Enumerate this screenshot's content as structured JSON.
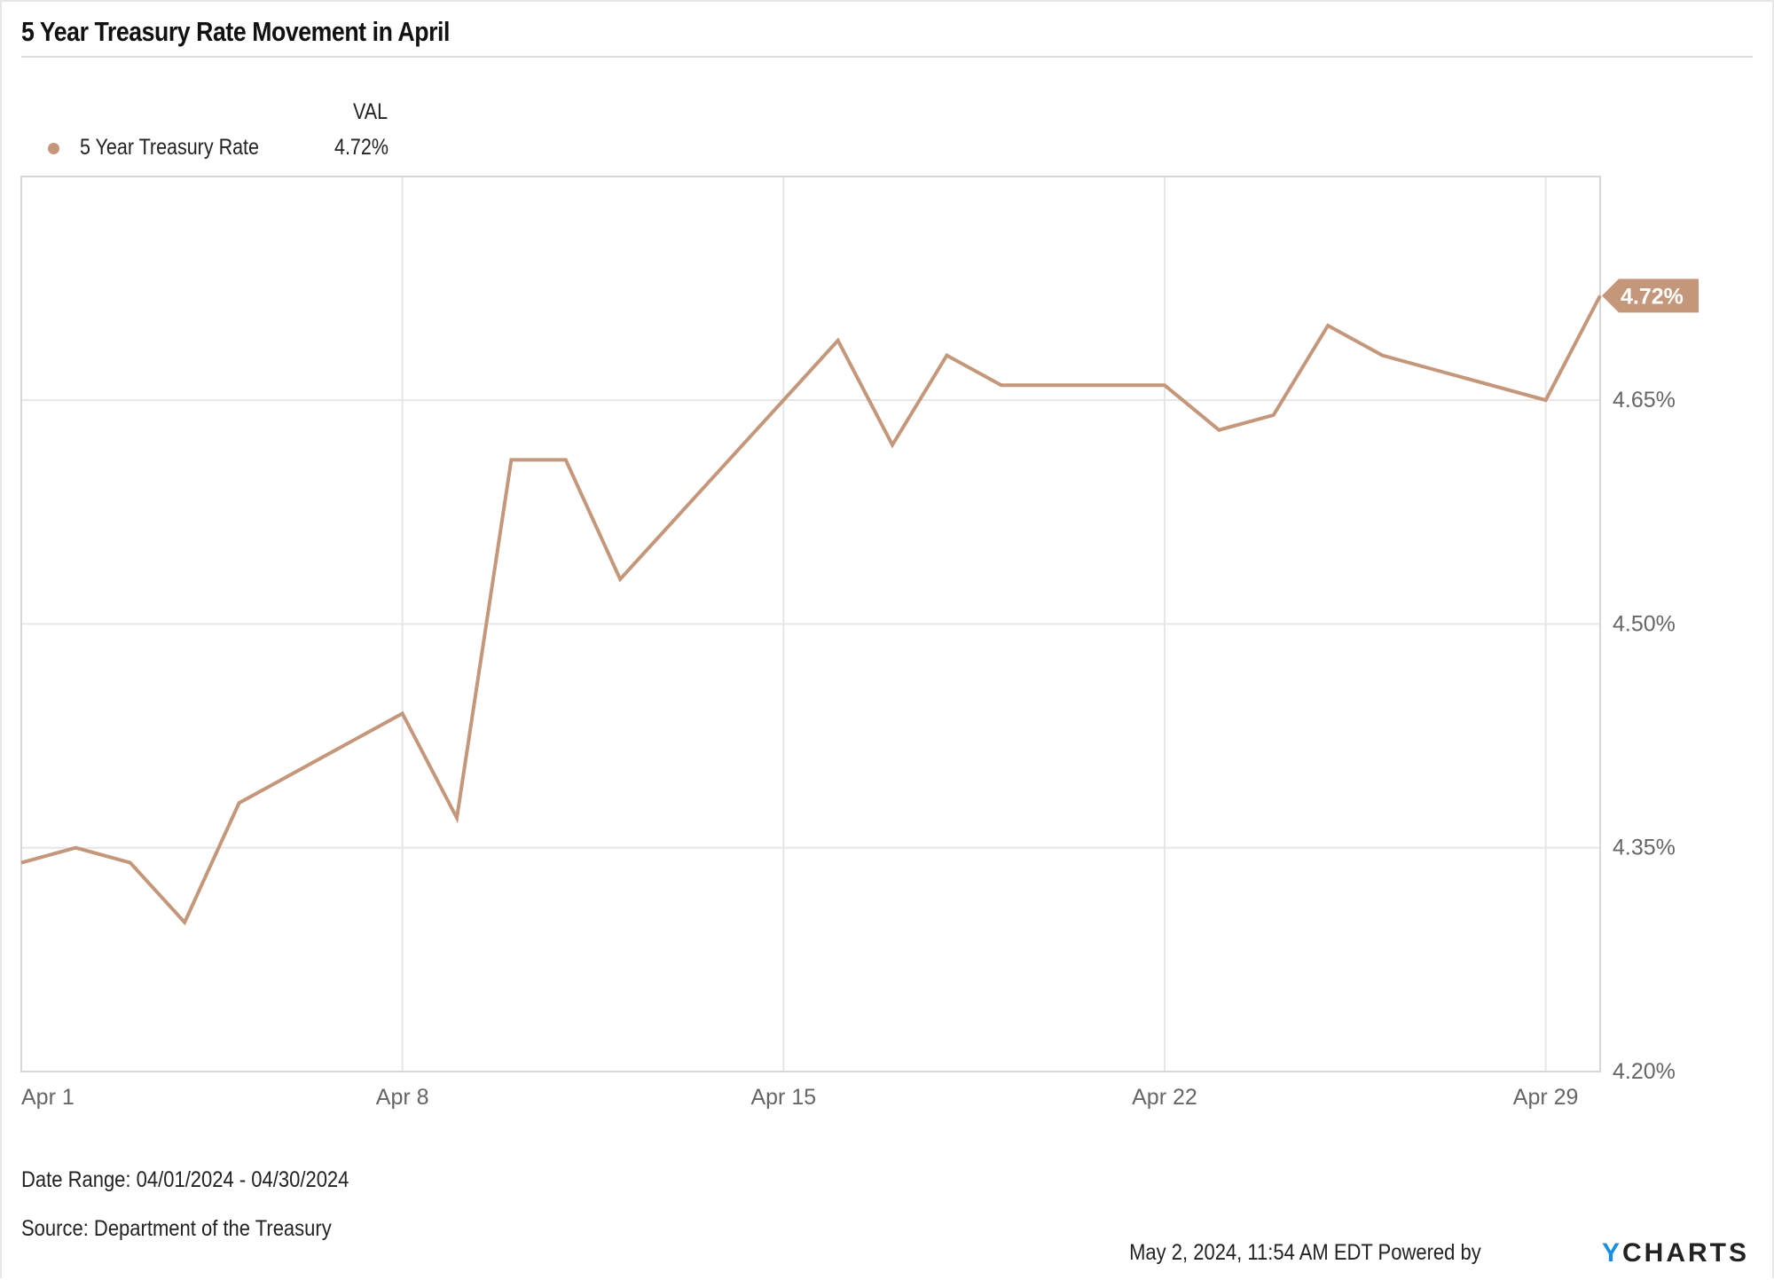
{
  "title": "5 Year Treasury Rate Movement in April",
  "legend": {
    "header": "VAL",
    "items": [
      {
        "name": "5 Year Treasury Rate",
        "value": "4.72%",
        "color": "#c4967a"
      }
    ]
  },
  "last_value_tag": "4.72%",
  "footer": {
    "date_range": "Date Range: 04/01/2024 - 04/30/2024",
    "source": "Source: Department of the Treasury",
    "timestamp": "May 2, 2024, 11:54 AM EDT Powered by",
    "brand_y": "Y",
    "brand_rest": "CHARTS"
  },
  "chart_data": {
    "type": "line",
    "title": "5 Year Treasury Rate Movement in April",
    "xlabel": "",
    "ylabel": "",
    "ylim": [
      4.2,
      4.8
    ],
    "yticks": [
      "4.20%",
      "4.35%",
      "4.50%",
      "4.65%"
    ],
    "xticks": [
      "Apr 1",
      "Apr 8",
      "Apr 15",
      "Apr 22",
      "Apr 29"
    ],
    "grid": true,
    "legend_position": "top-left",
    "series": [
      {
        "name": "5 Year Treasury Rate",
        "color": "#c4967a",
        "x": [
          "Apr 1",
          "Apr 2",
          "Apr 3",
          "Apr 4",
          "Apr 5",
          "Apr 8",
          "Apr 9",
          "Apr 10",
          "Apr 11",
          "Apr 12",
          "Apr 15",
          "Apr 16",
          "Apr 17",
          "Apr 18",
          "Apr 19",
          "Apr 22",
          "Apr 23",
          "Apr 24",
          "Apr 25",
          "Apr 26",
          "Apr 29",
          "Apr 30"
        ],
        "day": [
          1,
          2,
          3,
          4,
          5,
          8,
          9,
          10,
          11,
          12,
          15,
          16,
          17,
          18,
          19,
          22,
          23,
          24,
          25,
          26,
          29,
          30
        ],
        "values": [
          4.34,
          4.35,
          4.34,
          4.3,
          4.38,
          4.44,
          4.37,
          4.61,
          4.61,
          4.53,
          4.65,
          4.69,
          4.62,
          4.68,
          4.66,
          4.66,
          4.63,
          4.64,
          4.7,
          4.68,
          4.65,
          4.72
        ]
      }
    ]
  }
}
